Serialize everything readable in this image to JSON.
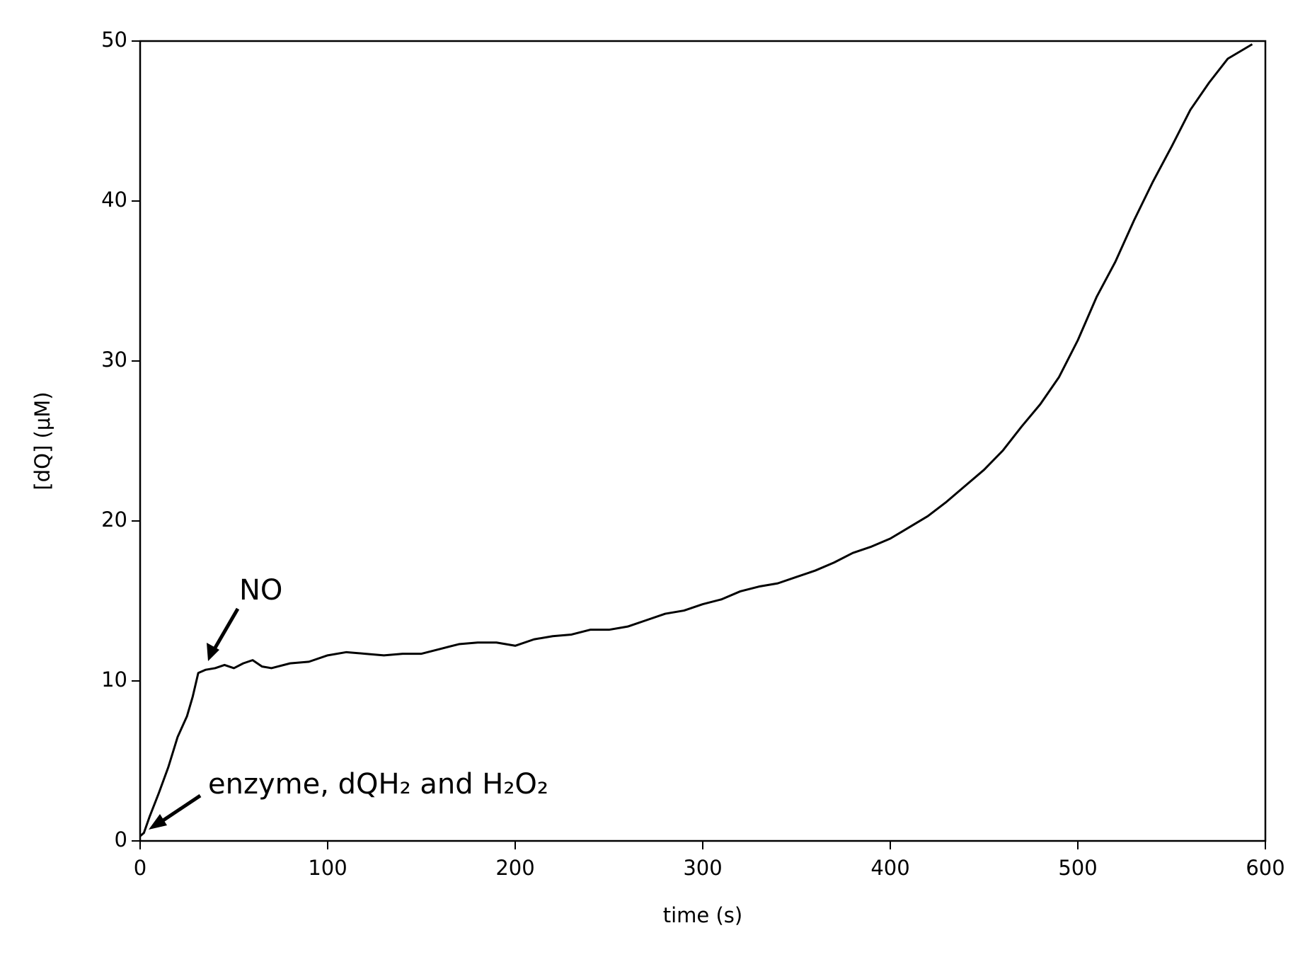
{
  "chart_data": {
    "type": "line",
    "xlabel": "time (s)",
    "ylabel": "[dQ] (μM)",
    "annotations": [
      "NO",
      "enzyme, dQH₂ and H₂O₂"
    ],
    "x": [
      0,
      2,
      5,
      10,
      15,
      20,
      25,
      28,
      31,
      35,
      40,
      45,
      50,
      55,
      60,
      65,
      70,
      80,
      90,
      100,
      110,
      120,
      130,
      140,
      150,
      160,
      170,
      180,
      190,
      200,
      210,
      220,
      230,
      240,
      250,
      260,
      270,
      280,
      290,
      300,
      310,
      320,
      330,
      340,
      350,
      360,
      370,
      380,
      390,
      400,
      410,
      420,
      430,
      440,
      450,
      460,
      470,
      480,
      490,
      500,
      510,
      520,
      530,
      540,
      550,
      560,
      570,
      580,
      593
    ],
    "series": [
      {
        "name": "dQ",
        "color": "#000000",
        "values": [
          0.3,
          0.5,
          1.5,
          3,
          4.6,
          6.5,
          7.8,
          9,
          10.5,
          10.7,
          10.8,
          11,
          10.8,
          11.1,
          11.3,
          10.9,
          10.8,
          11.1,
          11.2,
          11.6,
          11.8,
          11.7,
          11.6,
          11.7,
          11.7,
          12,
          12.3,
          12.4,
          12.4,
          12.2,
          12.6,
          12.8,
          12.9,
          13.2,
          13.2,
          13.4,
          13.8,
          14.2,
          14.4,
          14.8,
          15.1,
          15.6,
          15.9,
          16.1,
          16.5,
          16.9,
          17.4,
          18.0,
          18.4,
          18.9,
          19.6,
          20.3,
          21.2,
          22.2,
          23.2,
          24.4,
          25.9,
          27.3,
          29.0,
          31.3,
          34.0,
          36.2,
          38.8,
          41.2,
          43.4,
          45.7,
          47.4,
          48.9,
          49.8
        ]
      }
    ],
    "xlim": [
      0,
      600
    ],
    "xticks": [
      0,
      100,
      200,
      300,
      400,
      500,
      600
    ],
    "ylim": [
      0,
      50
    ],
    "yticks": [
      0,
      10,
      20,
      30,
      40,
      50
    ],
    "grid": false
  }
}
